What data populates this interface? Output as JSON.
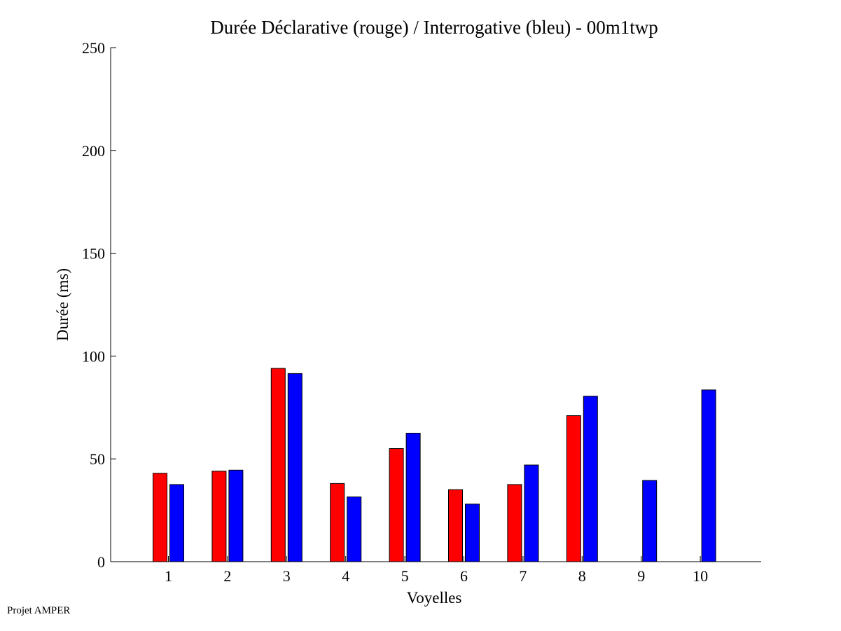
{
  "footer": {
    "credit": "Projet AMPER"
  },
  "chart_data": {
    "type": "bar",
    "title": "Durée Déclarative (rouge) / Interrogative (bleu) - 00m1twp",
    "xlabel": "Voyelles",
    "ylabel": "Durée (ms)",
    "ylim": [
      0,
      250
    ],
    "yticks": [
      0,
      50,
      100,
      150,
      200,
      250
    ],
    "grid": false,
    "legend": "none",
    "categories": [
      "1",
      "2",
      "3",
      "4",
      "5",
      "6",
      "7",
      "8",
      "9",
      "10"
    ],
    "series": [
      {
        "color": "#ff0000",
        "values": [
          43,
          44,
          94,
          38,
          55,
          35,
          37.5,
          71,
          null,
          null
        ]
      },
      {
        "color": "#0000ff",
        "values": [
          37.5,
          44.5,
          91.5,
          31.5,
          62.5,
          28,
          47,
          80.5,
          39.5,
          83.5
        ]
      }
    ]
  }
}
